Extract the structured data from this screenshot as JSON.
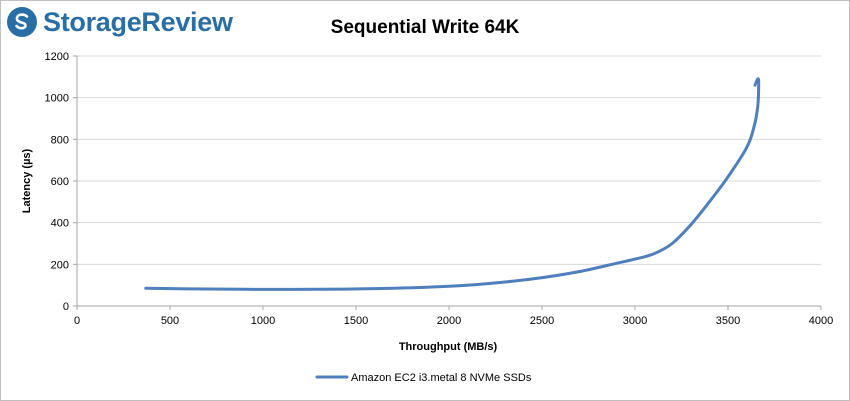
{
  "brand": {
    "name": "StorageReview",
    "color": "#2a6ea6",
    "icon": "storagereview-logo-icon"
  },
  "chart_data": {
    "type": "line",
    "title": "Sequential Write 64K",
    "xlabel": "Throughput (MB/s)",
    "ylabel": "Latency (µs)",
    "xlim": [
      0,
      4000
    ],
    "ylim": [
      0,
      1200
    ],
    "xticks": [
      0,
      500,
      1000,
      1500,
      2000,
      2500,
      3000,
      3500,
      4000
    ],
    "yticks": [
      0,
      200,
      400,
      600,
      800,
      1000,
      1200
    ],
    "grid": "horizontal",
    "legend": "bottom",
    "series": [
      {
        "name": "Amazon EC2 i3.metal 8 NVMe SSDs",
        "color": "#4f7fbc",
        "x": [
          370,
          600,
          900,
          1300,
          1700,
          2000,
          2200,
          2450,
          2700,
          2900,
          3000,
          3100,
          3200,
          3300,
          3400,
          3500,
          3600,
          3640,
          3660,
          3665,
          3660,
          3645
        ],
        "y": [
          85,
          82,
          80,
          80,
          85,
          95,
          107,
          130,
          165,
          205,
          225,
          250,
          300,
          390,
          500,
          620,
          760,
          860,
          960,
          1070,
          1090,
          1060
        ]
      }
    ]
  }
}
